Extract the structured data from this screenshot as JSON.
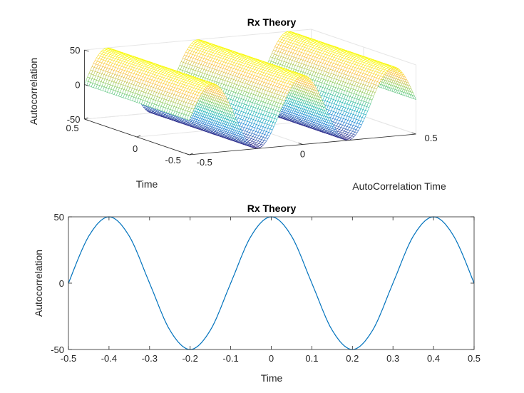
{
  "chart_data": [
    {
      "type": "surface",
      "title": "Rx Theory",
      "xlabel": "Time",
      "ylabel": "AutoCorrelation Time",
      "zlabel": "Autocorrelation",
      "x_ticks": [
        "0.5",
        "0",
        "-0.5"
      ],
      "y_ticks": [
        "-0.5",
        "0",
        "0.5"
      ],
      "z_ticks": [
        "50",
        "0",
        "-50"
      ],
      "xlim": [
        -0.5,
        0.5
      ],
      "ylim": [
        -0.5,
        0.5
      ],
      "zlim": [
        -50,
        50
      ],
      "function": "Rx(tau) = 50*cos(2*pi*2.5*tau), constant along Time",
      "amplitude": 50,
      "frequency_hz": 2.5,
      "colormap": "parula",
      "grid": true
    },
    {
      "type": "line",
      "title": "Rx Theory",
      "xlabel": "Time",
      "ylabel": "Autocorrelation",
      "xlim": [
        -0.5,
        0.5
      ],
      "ylim": [
        -50,
        50
      ],
      "x_ticks": [
        "-0.5",
        "-0.4",
        "-0.3",
        "-0.2",
        "-0.1",
        "0",
        "0.1",
        "0.2",
        "0.3",
        "0.4",
        "0.5"
      ],
      "y_ticks": [
        "-50",
        "0",
        "50"
      ],
      "series": [
        {
          "color": "#0072bd",
          "x": [
            -0.5,
            -0.45,
            -0.4,
            -0.35,
            -0.3,
            -0.25,
            -0.2,
            -0.15,
            -0.1,
            -0.05,
            0,
            0.05,
            0.1,
            0.15,
            0.2,
            0.25,
            0.3,
            0.35,
            0.4,
            0.45,
            0.5
          ],
          "y": [
            0,
            35.36,
            50,
            35.36,
            0,
            -35.36,
            -50,
            -35.36,
            0,
            35.36,
            50,
            35.36,
            0,
            -35.36,
            -50,
            -35.36,
            0,
            35.36,
            50,
            35.36,
            0
          ]
        }
      ]
    }
  ]
}
